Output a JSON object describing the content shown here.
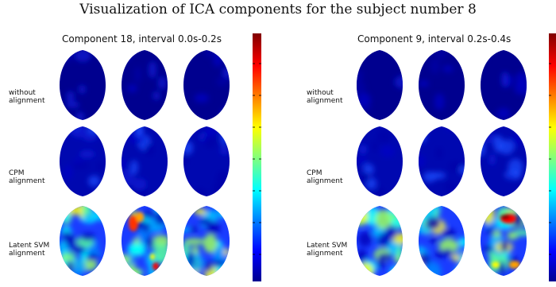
{
  "main_title": "Visualization of ICA components for the subject number 8",
  "panels": [
    {
      "title": "Component 18, interval 0.0s-0.2s",
      "rows": [
        {
          "label_line1": "without",
          "label_line2": "alignment"
        },
        {
          "label_line1": "CPM",
          "label_line2": "alignment"
        },
        {
          "label_line1": "Latent SVM",
          "label_line2": "alignment"
        }
      ]
    },
    {
      "title": "Component 9, interval 0.2s-0.4s",
      "rows": [
        {
          "label_line1": "without",
          "label_line2": "alignment"
        },
        {
          "label_line1": "CPM",
          "label_line2": "alignment"
        },
        {
          "label_line1": "Latent SVM",
          "label_line2": "alignment"
        }
      ]
    }
  ],
  "colormap": "jet",
  "colors": {
    "dark_blue": "#00008f",
    "blue": "#0000ff",
    "cyan": "#00ffff",
    "yellow": "#ffff00",
    "red": "#ff0000",
    "dark_red": "#800000"
  }
}
